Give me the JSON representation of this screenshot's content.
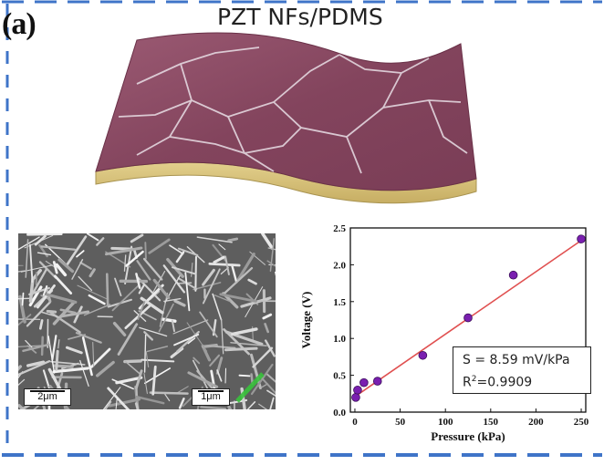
{
  "figure": {
    "panel_label": "(a)",
    "title": "PZT NFs/PDMS"
  },
  "sem_image": {
    "scalebar_left": "2μm",
    "scalebar_right": "1μm"
  },
  "annotation": {
    "sensitivity": "S = 8.59 mV/kPa",
    "r2_prefix": "R",
    "r2_sup": "2",
    "r2_value": "=0.9909"
  },
  "colors": {
    "border_dash": "#3f74c8",
    "film_top": "#8a4a63",
    "film_side": "#d6c27e",
    "point": "#7a1fb0",
    "fit_line": "#e05050"
  },
  "chart_data": {
    "type": "scatter",
    "xlabel": "Pressure (kPa)",
    "ylabel": "Voltage (V)",
    "xlim": [
      -5,
      255
    ],
    "ylim": [
      0,
      2.5
    ],
    "xticks": [
      0,
      50,
      100,
      150,
      200,
      250
    ],
    "yticks": [
      0.0,
      0.5,
      1.0,
      1.5,
      2.0,
      2.5
    ],
    "grid": false,
    "points": [
      {
        "x": 1,
        "y": 0.2
      },
      {
        "x": 3,
        "y": 0.3
      },
      {
        "x": 10,
        "y": 0.4
      },
      {
        "x": 25,
        "y": 0.42
      },
      {
        "x": 75,
        "y": 0.77
      },
      {
        "x": 125,
        "y": 1.28
      },
      {
        "x": 175,
        "y": 1.86
      },
      {
        "x": 250,
        "y": 2.35
      }
    ],
    "fit": {
      "x": [
        0,
        250
      ],
      "y": [
        0.21,
        2.33
      ]
    }
  }
}
